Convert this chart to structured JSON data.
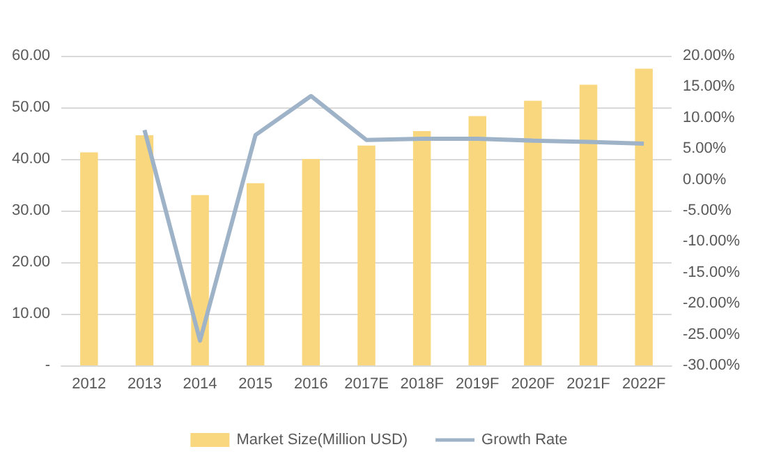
{
  "chart_data": {
    "type": "bar",
    "categories": [
      "2012",
      "2013",
      "2014",
      "2015",
      "2016",
      "2017E",
      "2018F",
      "2019F",
      "2020F",
      "2021F",
      "2022F"
    ],
    "series": [
      {
        "name": "Market Size(Million USD)",
        "color": "#f9d77e",
        "values": [
          41.3,
          44.6,
          33.0,
          35.3,
          40.0,
          42.6,
          45.4,
          48.3,
          51.3,
          54.4,
          57.5
        ]
      },
      {
        "name": "Growth Rate",
        "type": "line",
        "axis": "y2",
        "color": "#9fb3c8",
        "values": [
          null,
          8.0,
          -26.0,
          7.2,
          13.5,
          6.4,
          6.6,
          6.6,
          6.3,
          6.1,
          5.8
        ]
      }
    ],
    "ylim": [
      0,
      60
    ],
    "yticks": [
      {
        "value": 0,
        "label": "-"
      },
      {
        "value": 10,
        "label": "10.00"
      },
      {
        "value": 20,
        "label": "20.00"
      },
      {
        "value": 30,
        "label": "30.00"
      },
      {
        "value": 40,
        "label": "40.00"
      },
      {
        "value": 50,
        "label": "50.00"
      },
      {
        "value": 60,
        "label": "60.00"
      }
    ],
    "y2lim": [
      -30,
      20
    ],
    "y2ticks": [
      {
        "value": -30,
        "label": "-30.00%"
      },
      {
        "value": -25,
        "label": "-25.00%"
      },
      {
        "value": -20,
        "label": "-20.00%"
      },
      {
        "value": -15,
        "label": "-15.00%"
      },
      {
        "value": -10,
        "label": "-10.00%"
      },
      {
        "value": -5,
        "label": "-5.00%"
      },
      {
        "value": 0,
        "label": "0.00%"
      },
      {
        "value": 5,
        "label": "5.00%"
      },
      {
        "value": 10,
        "label": "10.00%"
      },
      {
        "value": 15,
        "label": "15.00%"
      },
      {
        "value": 20,
        "label": "20.00%"
      }
    ],
    "grid": "y",
    "legend": "bottom",
    "marker": "none"
  }
}
